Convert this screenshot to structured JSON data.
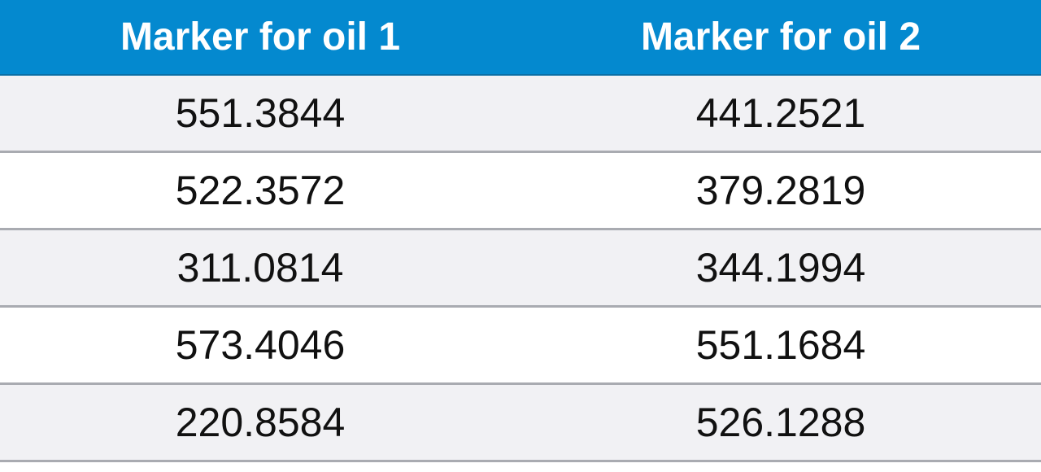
{
  "colors": {
    "header_bg": "#0489cf",
    "header_text": "#ffffff",
    "row_alt_bg": "#f1f1f4",
    "row_bg": "#ffffff",
    "divider": "#a9abb1"
  },
  "table": {
    "headers": [
      "Marker for oil 1",
      "Marker for oil 2"
    ],
    "rows": [
      [
        "551.3844",
        "441.2521"
      ],
      [
        "522.3572",
        "379.2819"
      ],
      [
        "311.0814",
        "344.1994"
      ],
      [
        "573.4046",
        "551.1684"
      ],
      [
        "220.8584",
        "526.1288"
      ]
    ]
  }
}
